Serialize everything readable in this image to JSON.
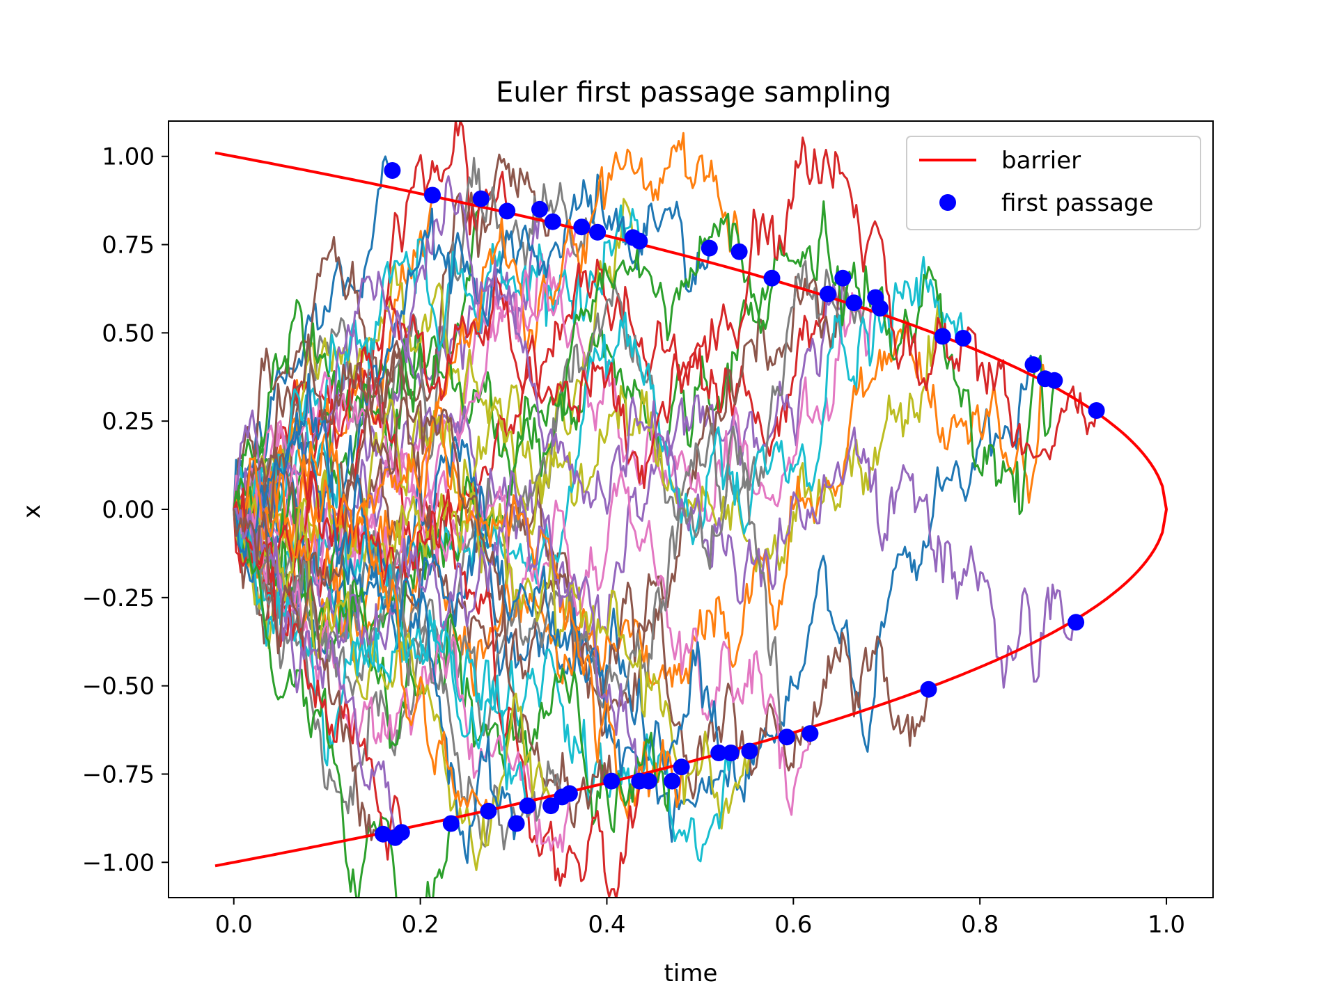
{
  "chart_data": {
    "type": "scatter",
    "title": "Euler first passage sampling",
    "xlabel": "time",
    "ylabel": "x",
    "xlim": [
      -0.07,
      1.05
    ],
    "ylim": [
      -1.1,
      1.1
    ],
    "xticks": [
      0.0,
      0.2,
      0.4,
      0.6,
      0.8,
      1.0
    ],
    "xtick_labels": [
      "0.0",
      "0.2",
      "0.4",
      "0.6",
      "0.8",
      "1.0"
    ],
    "yticks": [
      1.0,
      0.75,
      0.5,
      0.25,
      0.0,
      -0.25,
      -0.5,
      -0.75,
      -1.0
    ],
    "ytick_labels": [
      "1.00",
      "0.75",
      "0.50",
      "0.25",
      "0.00",
      "−0.25",
      "−0.50",
      "−0.75",
      "−1.00"
    ],
    "grid": false,
    "legend_position": "top-right",
    "legend": [
      {
        "label": "barrier",
        "marker": "line",
        "color": "#ff0000"
      },
      {
        "label": "first passage",
        "marker": "dot",
        "color": "#0000ff"
      }
    ],
    "barrier": {
      "color": "#ff0000",
      "formula": "x = ±sqrt(1 - t)",
      "t_range": [
        -0.02,
        1.0
      ]
    },
    "path_colors": [
      "#1f77b4",
      "#ff7f0e",
      "#2ca02c",
      "#d62728",
      "#9467bd",
      "#8c564b",
      "#e377c2",
      "#7f7f7f",
      "#bcbd22",
      "#17becf"
    ],
    "first_passage": {
      "color": "#0000ff",
      "points": [
        [
          0.17,
          0.96
        ],
        [
          0.213,
          0.89
        ],
        [
          0.265,
          0.88
        ],
        [
          0.293,
          0.845
        ],
        [
          0.328,
          0.85
        ],
        [
          0.342,
          0.815
        ],
        [
          0.373,
          0.8
        ],
        [
          0.39,
          0.785
        ],
        [
          0.428,
          0.77
        ],
        [
          0.435,
          0.76
        ],
        [
          0.51,
          0.74
        ],
        [
          0.542,
          0.73
        ],
        [
          0.577,
          0.655
        ],
        [
          0.637,
          0.61
        ],
        [
          0.653,
          0.655
        ],
        [
          0.665,
          0.585
        ],
        [
          0.688,
          0.6
        ],
        [
          0.693,
          0.57
        ],
        [
          0.76,
          0.49
        ],
        [
          0.782,
          0.485
        ],
        [
          0.857,
          0.41
        ],
        [
          0.87,
          0.37
        ],
        [
          0.88,
          0.365
        ],
        [
          0.925,
          0.28
        ],
        [
          0.903,
          -0.32
        ],
        [
          0.745,
          -0.51
        ],
        [
          0.618,
          -0.635
        ],
        [
          0.593,
          -0.645
        ],
        [
          0.553,
          -0.685
        ],
        [
          0.533,
          -0.69
        ],
        [
          0.52,
          -0.69
        ],
        [
          0.48,
          -0.73
        ],
        [
          0.47,
          -0.77
        ],
        [
          0.445,
          -0.77
        ],
        [
          0.435,
          -0.77
        ],
        [
          0.405,
          -0.77
        ],
        [
          0.36,
          -0.805
        ],
        [
          0.352,
          -0.815
        ],
        [
          0.34,
          -0.84
        ],
        [
          0.315,
          -0.84
        ],
        [
          0.303,
          -0.89
        ],
        [
          0.273,
          -0.855
        ],
        [
          0.233,
          -0.89
        ],
        [
          0.18,
          -0.915
        ],
        [
          0.173,
          -0.93
        ],
        [
          0.16,
          -0.92
        ]
      ]
    }
  }
}
